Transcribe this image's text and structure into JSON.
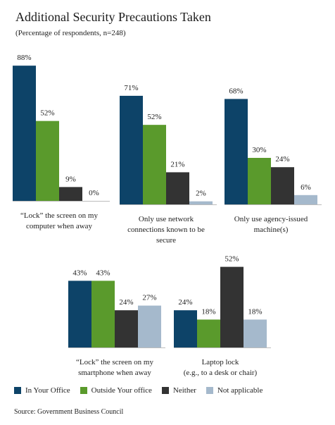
{
  "title": "Additional Security Precautions Taken",
  "subtitle": "(Percentage of respondents, n=248)",
  "source": "Source: Government Business Council",
  "colors": {
    "in_your_office": "#0d4368",
    "outside_your_office": "#5a9a2c",
    "neither": "#333333",
    "not_applicable": "#a5b9cc"
  },
  "chart_data": {
    "type": "bar",
    "series": [
      {
        "name": "In Your Office",
        "color": "#0d4368"
      },
      {
        "name": "Outside Your office",
        "color": "#5a9a2c"
      },
      {
        "name": "Neither",
        "color": "#333333"
      },
      {
        "name": "Not applicable",
        "color": "#a5b9cc"
      }
    ],
    "legend_position": "bottom",
    "groups": [
      {
        "label": [
          "“Lock” the screen on my",
          "computer when away"
        ],
        "values": [
          88,
          52,
          9,
          0
        ],
        "value_labels": [
          "88%",
          "52%",
          "9%",
          "0%"
        ]
      },
      {
        "label": [
          "Only use network",
          "connections known to be",
          "secure"
        ],
        "values": [
          71,
          52,
          21,
          2
        ],
        "value_labels": [
          "71%",
          "52%",
          "21%",
          "2%"
        ]
      },
      {
        "label": [
          "Only use agency-issued",
          "machine(s)"
        ],
        "values": [
          68,
          30,
          24,
          6
        ],
        "value_labels": [
          "68%",
          "30%",
          "24%",
          "6%"
        ]
      },
      {
        "label": [
          "“Lock” the screen on my",
          "smartphone when away"
        ],
        "values": [
          43,
          43,
          24,
          27
        ],
        "value_labels": [
          "43%",
          "43%",
          "24%",
          "27%"
        ]
      },
      {
        "label": [
          "Laptop lock",
          "(e.g., to a desk or chair)"
        ],
        "values": [
          24,
          18,
          52,
          18
        ],
        "value_labels": [
          "24%",
          "18%",
          "52%",
          "18%"
        ]
      }
    ]
  }
}
